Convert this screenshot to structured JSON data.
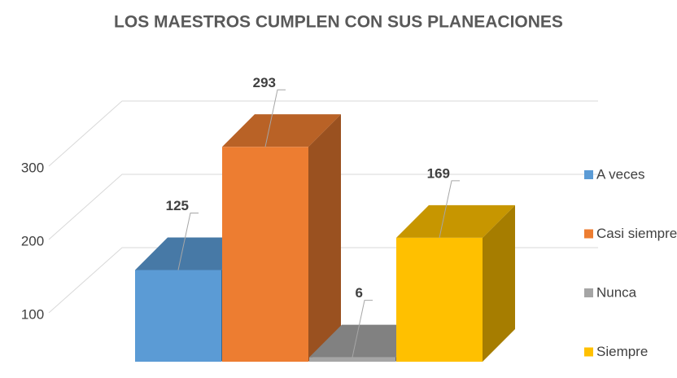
{
  "chart_data": {
    "type": "bar3d",
    "title": "LOS MAESTROS CUMPLEN CON SUS PLANEACIONES",
    "categories": [
      null
    ],
    "series": [
      {
        "name": "A veces",
        "color": "#5b9bd5",
        "values": [
          125
        ]
      },
      {
        "name": "Casi siempre",
        "color": "#ed7d31",
        "values": [
          293
        ]
      },
      {
        "name": "Nunca",
        "color": "#a5a5a5",
        "values": [
          6
        ]
      },
      {
        "name": "Siempre",
        "color": "#ffc000",
        "values": [
          169
        ]
      }
    ],
    "ylim": [
      0,
      350
    ],
    "yticks": [
      100,
      200,
      300
    ],
    "grid": true,
    "legend": "right"
  }
}
